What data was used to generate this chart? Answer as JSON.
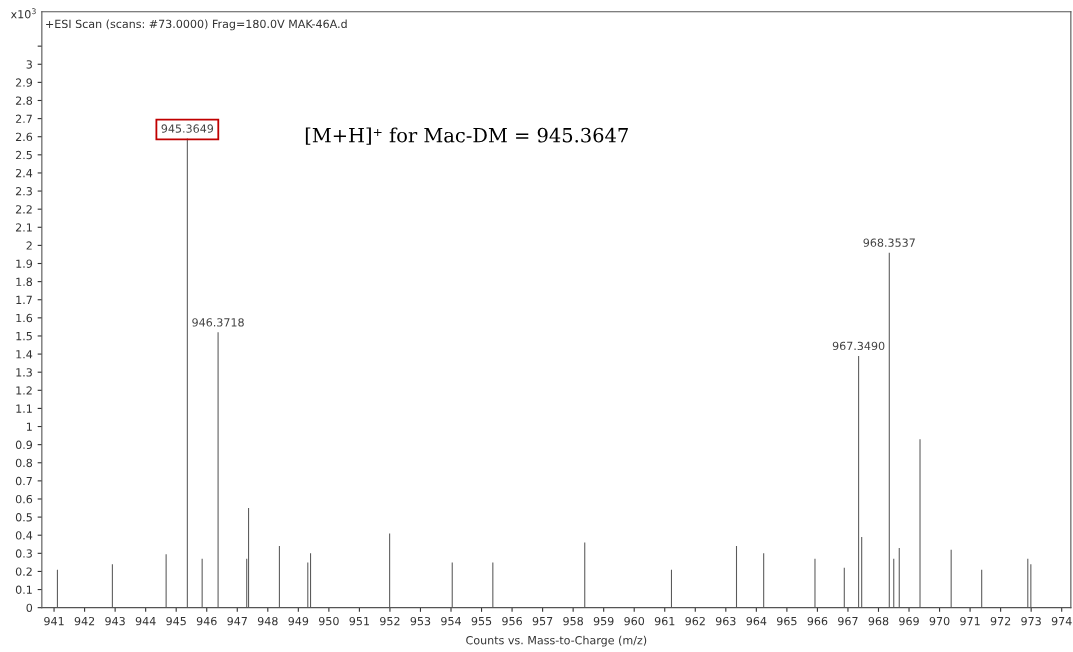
{
  "chart_data": {
    "type": "bar",
    "title": "+ESI Scan (scans: #73.0000) Frag=180.0V MAK-46A.d",
    "xlabel": "Counts vs. Mass-to-Charge (m/z)",
    "ylabel": "x10$^{3}$",
    "x": [
      941.11,
      942.91,
      944.67,
      945.3649,
      945.85,
      946.3718,
      947.31,
      947.37,
      948.38,
      949.31,
      949.4,
      951.99,
      954.04,
      955.37,
      958.38,
      961.22,
      963.35,
      964.24,
      965.92,
      966.88,
      967.349,
      967.45,
      968.3537,
      968.5,
      968.68,
      969.36,
      970.38,
      971.38,
      972.89,
      972.99
    ],
    "values": [
      0.21,
      0.24,
      0.295,
      2.59,
      0.27,
      1.52,
      0.27,
      0.55,
      0.34,
      0.25,
      0.3,
      0.41,
      0.25,
      0.25,
      0.36,
      0.21,
      0.34,
      0.3,
      0.27,
      0.22,
      1.39,
      0.39,
      1.96,
      0.27,
      0.33,
      0.93,
      0.32,
      0.21,
      0.27,
      0.24
    ],
    "color": "#5a5a5a",
    "annotations": [
      "[M+H]⁺ for Mac-DM = 945.3647",
      {
        "text": "945.3649",
        "x": 945.3649,
        "y": 2.59
      },
      {
        "text": "946.3718",
        "x": 946.3718,
        "y": 1.52
      },
      {
        "text": "967.3490",
        "x": 967.349,
        "y": 1.39
      },
      {
        "text": "968.3537",
        "x": 968.3537,
        "y": 1.96
      }
    ],
    "xlim": [
      940.6,
      974.3
    ],
    "xticks": [
      941,
      942,
      943,
      944,
      945,
      946,
      947,
      948,
      949,
      950,
      951,
      952,
      953,
      954,
      955,
      956,
      957,
      958,
      959,
      960,
      961,
      962,
      963,
      964,
      965,
      966,
      967,
      968,
      969,
      970,
      971,
      972,
      973,
      974
    ],
    "ylim": [
      0,
      3.29
    ],
    "yticks": [
      0,
      0.1,
      0.2,
      0.3,
      0.4,
      0.5,
      0.6,
      0.7,
      0.8,
      0.9,
      1,
      1.1,
      1.2,
      1.3,
      1.4,
      1.5,
      1.6,
      1.7,
      1.8,
      1.9,
      2,
      2.1,
      2.2,
      2.3,
      2.4,
      2.5,
      2.6,
      2.7,
      2.8,
      2.9,
      3,
      {
        "value": 3.1,
        "label": null
      }
    ],
    "grid": false
  }
}
